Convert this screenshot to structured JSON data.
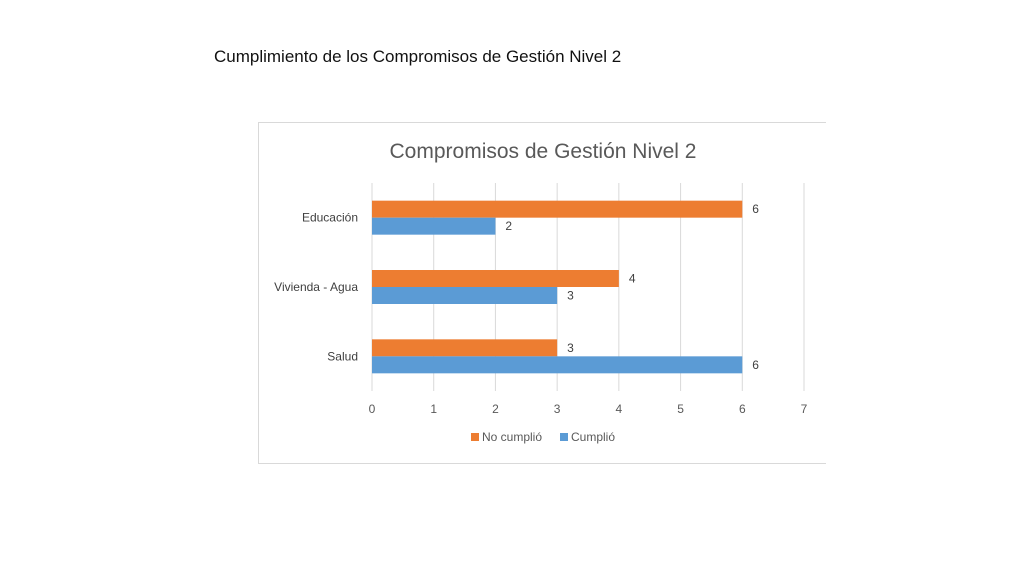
{
  "slide": {
    "title": "Cumplimiento de los Compromisos de Gestión Nivel 2"
  },
  "colors": {
    "no_cumplio": "#ED7D31",
    "cumplio": "#5B9BD5",
    "grid": "#d9d9d9"
  },
  "chart_data": {
    "type": "bar",
    "orientation": "horizontal",
    "title": "Compromisos de Gestión Nivel 2",
    "categories": [
      "Educación",
      "Vivienda - Agua",
      "Salud"
    ],
    "series": [
      {
        "name": "No cumplió",
        "values": [
          6,
          4,
          3
        ]
      },
      {
        "name": "Cumplió",
        "values": [
          2,
          3,
          6
        ]
      }
    ],
    "xlim": [
      0,
      7
    ],
    "xticks": [
      0,
      1,
      2,
      3,
      4,
      5,
      6,
      7
    ],
    "grid": true,
    "legend_position": "bottom",
    "data_labels": true
  }
}
